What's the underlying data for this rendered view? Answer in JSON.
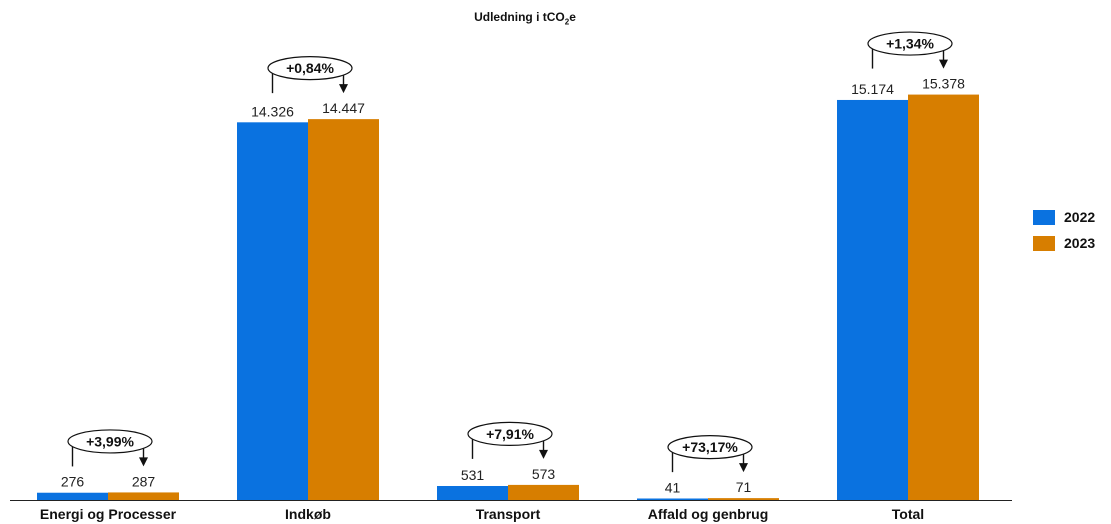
{
  "chart_data": {
    "type": "bar",
    "title": {
      "prefix": "Udledning i tCO",
      "subscript": "2",
      "suffix": "e"
    },
    "categories": [
      "Energi og Processer",
      "Indkøb",
      "Transport",
      "Affald og genbrug",
      "Total"
    ],
    "series": [
      {
        "name": "2022",
        "color": "#0a72e0",
        "values": [
          276,
          14326,
          531,
          41,
          15174
        ],
        "labels": [
          "276",
          "14.326",
          "531",
          "41",
          "15.174"
        ]
      },
      {
        "name": "2023",
        "color": "#d77e00",
        "values": [
          287,
          14447,
          573,
          71,
          15378
        ],
        "labels": [
          "287",
          "14.447",
          "573",
          "71",
          "15.378"
        ]
      }
    ],
    "changes": [
      "+3,99%",
      "+0,84%",
      "+7,91%",
      "+73,17%",
      "+1,34%"
    ],
    "ylim": [
      0,
      16500
    ],
    "grid": false,
    "legend_position": "right"
  }
}
